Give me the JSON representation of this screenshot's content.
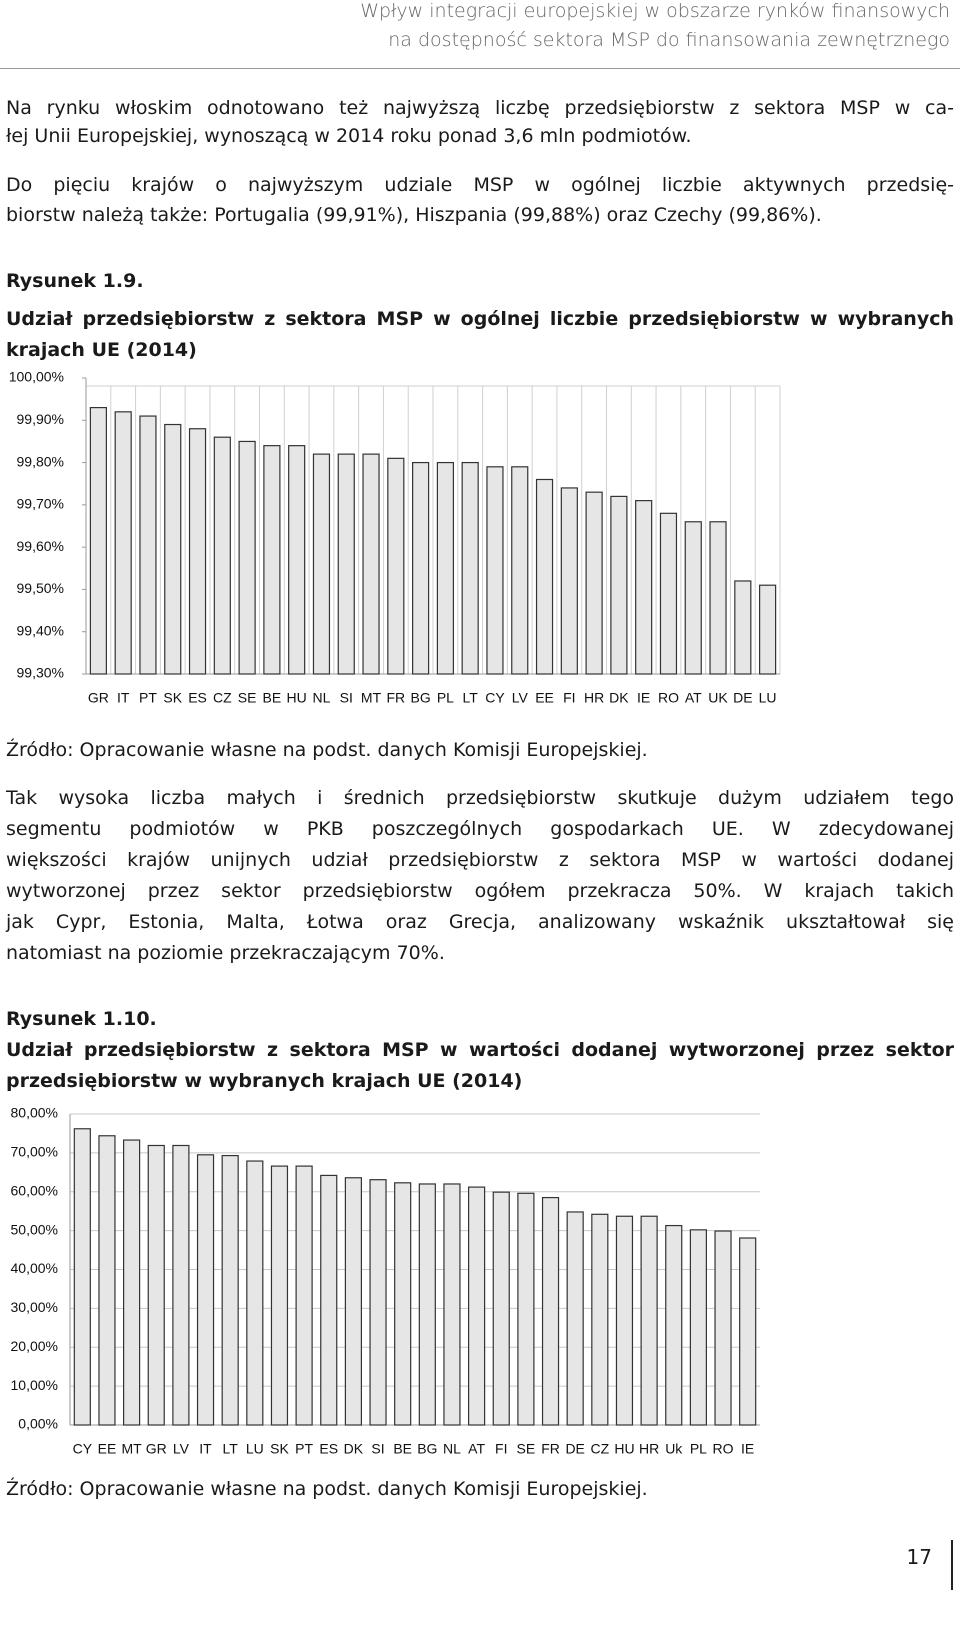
{
  "header": {
    "lines": [
      "Wpływ integracji europejskiej w obszarze rynków finansowych",
      "na dostępność sektora MSP do finansowania zewnętrznego"
    ]
  },
  "paragraphs": [
    [
      "Na rynku włoskim odnotowano też najwyższą liczbę przedsiębiorstw z sektora MSP w ca-",
      "łej Unii Europejskiej, wynoszącą w 2014 roku ponad 3,6 mln podmiotów."
    ],
    [
      "Do pięciu krajów o najwyższym udziale MSP w ogólnej liczbie aktywnych przedsię-",
      "biorstw należą także: Portugalia (99,91%), Hiszpania (99,88%) oraz Czechy (99,86%)."
    ],
    [
      "Tak wysoka liczba małych i średnich przedsiębiorstw skutkuje dużym udziałem tego",
      "segmentu podmiotów w PKB poszczególnych gospodarkach UE. W zdecydowanej",
      "większości krajów unijnych udział przedsiębiorstw z sektora MSP w wartości dodanej",
      "wytworzonej przez sektor przedsiębiorstw ogółem przekracza 50%. W krajach takich",
      "jak Cypr, Estonia, Malta, Łotwa oraz Grecja, analizowany wskaźnik ukształtował się",
      "natomiast na poziomie przekraczającym 70%."
    ]
  ],
  "figures": [
    {
      "label": "Rysunek 1.9.",
      "source": "Źródło: Opracowanie własne na podst. danych Komisji Europejskiej."
    },
    {
      "label": "Rysunek 1.10.",
      "source": "Źródło: Opracowanie własne na podst. danych Komisji Europejskiej."
    }
  ],
  "chart_data": [
    {
      "type": "bar",
      "title": "Udział przedsiębiorstw z sektora MSP w ogólnej liczbie przedsiębiorstw w wybranych krajach UE (2014)",
      "categories": [
        "GR",
        "IT",
        "PT",
        "SK",
        "ES",
        "CZ",
        "SE",
        "BE",
        "HU",
        "NL",
        "SI",
        "MT",
        "FR",
        "BG",
        "PL",
        "LT",
        "CY",
        "LV",
        "EE",
        "FI",
        "HR",
        "DK",
        "IE",
        "RO",
        "AT",
        "UK",
        "DE",
        "LU"
      ],
      "values": [
        99.93,
        99.92,
        99.91,
        99.89,
        99.88,
        99.86,
        99.85,
        99.84,
        99.84,
        99.82,
        99.82,
        99.82,
        99.81,
        99.8,
        99.8,
        99.8,
        99.79,
        99.79,
        99.76,
        99.74,
        99.73,
        99.72,
        99.71,
        99.68,
        99.66,
        99.66,
        99.52,
        99.51
      ],
      "color": "#e6e6e6",
      "ylim": [
        99.3,
        100
      ],
      "yticks": [
        {
          "value": 99.3,
          "label": "99,30%"
        },
        {
          "value": 99.4,
          "label": "99,40%"
        },
        {
          "value": 99.5,
          "label": "99,50%"
        },
        {
          "value": 99.6,
          "label": "99,60%"
        },
        {
          "value": 99.7,
          "label": "99,70%"
        },
        {
          "value": 99.8,
          "label": "99,80%"
        },
        {
          "value": 99.9,
          "label": "99,90%"
        },
        {
          "value": 100,
          "label": "100,00%"
        }
      ],
      "grid": "x"
    },
    {
      "type": "bar",
      "title": "Udział przedsiębiorstw z sektora MSP w wartości dodanej wytworzonej przez sektor przedsiębiorstw w wybranych krajach UE (2014)",
      "categories": [
        "CY",
        "EE",
        "MT",
        "GR",
        "LV",
        "IT",
        "LT",
        "LU",
        "SK",
        "PT",
        "ES",
        "DK",
        "SI",
        "BE",
        "BG",
        "NL",
        "AT",
        "FI",
        "SE",
        "FR",
        "DE",
        "CZ",
        "HU",
        "HR",
        "Uk",
        "PL",
        "RO",
        "IE"
      ],
      "values": [
        76.2,
        74.4,
        73.3,
        71.9,
        71.9,
        69.5,
        69.3,
        67.9,
        66.6,
        66.6,
        64.2,
        63.6,
        63.1,
        62.3,
        62.0,
        62.0,
        61.2,
        59.9,
        59.6,
        58.5,
        54.8,
        54.2,
        53.7,
        53.7,
        51.3,
        50.2,
        49.9,
        48.1
      ],
      "color": "#e6e6e6",
      "ylim": [
        0,
        80
      ],
      "yticks": [
        {
          "value": 0,
          "label": "0,00%"
        },
        {
          "value": 10,
          "label": "10,00%"
        },
        {
          "value": 20,
          "label": "20,00%"
        },
        {
          "value": 30,
          "label": "30,00%"
        },
        {
          "value": 40,
          "label": "40,00%"
        },
        {
          "value": 50,
          "label": "50,00%"
        },
        {
          "value": 60,
          "label": "60,00%"
        },
        {
          "value": 70,
          "label": "70,00%"
        },
        {
          "value": 80,
          "label": "80,00%"
        }
      ],
      "grid": "y"
    }
  ],
  "page_number": 17
}
